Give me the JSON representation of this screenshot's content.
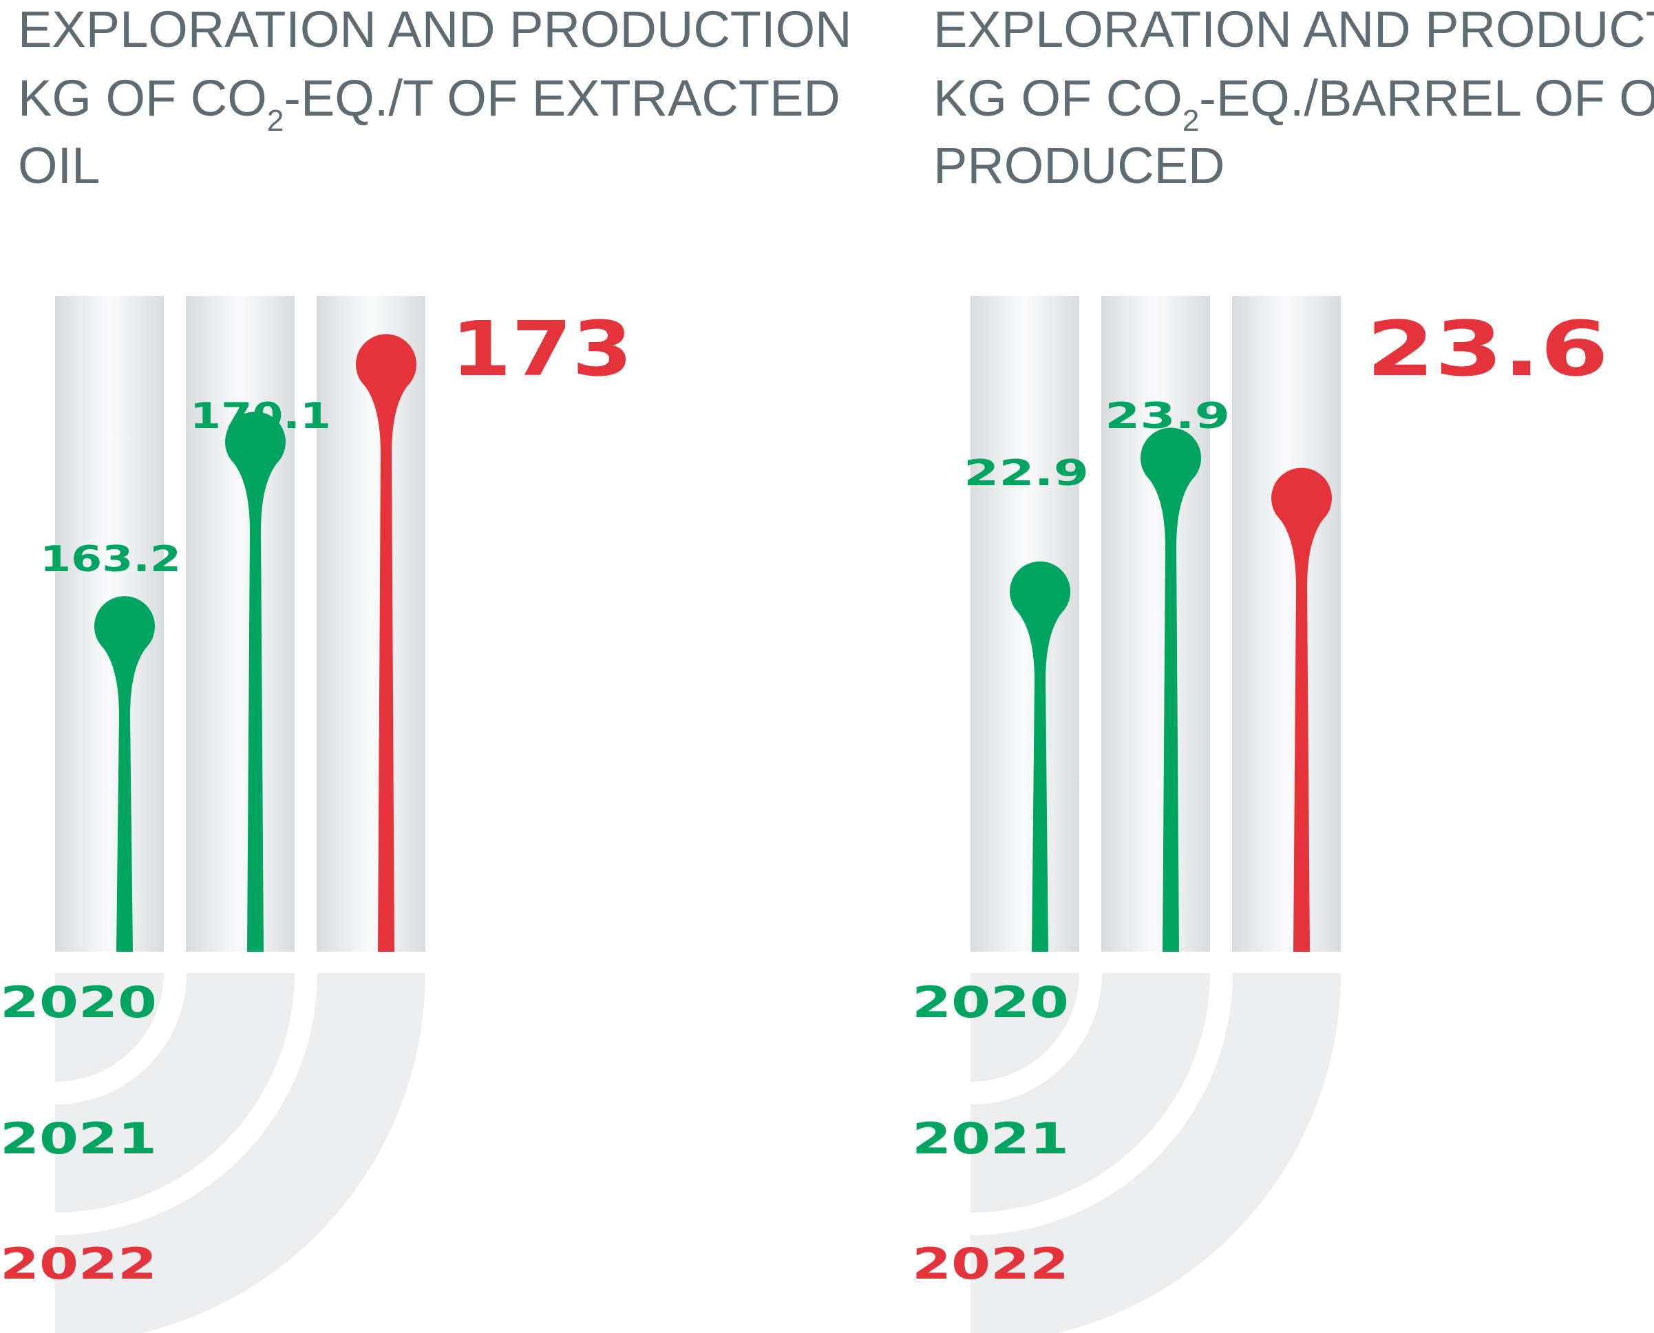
{
  "colors": {
    "green": "#00a461",
    "red": "#e5333b",
    "title_gray": "#5e6b72",
    "tube_edge": "#d6d9dc",
    "tube_center": "#f9fafb"
  },
  "chart_data": [
    {
      "type": "lollipop",
      "title_lines": [
        {
          "text": "EXPLORATION AND PRODUCTION"
        },
        {
          "text": "KG OF CO",
          "sub": "2",
          "after": "-EQ./T OF EXTRACTED"
        },
        {
          "text": "OIL"
        }
      ],
      "categories": [
        "2020",
        "2021",
        "2022"
      ],
      "values": [
        163.2,
        170.1,
        173
      ],
      "value_labels": [
        "163.2",
        "170.1",
        "173"
      ],
      "highlight": "2022",
      "ylim": [
        150,
        175
      ]
    },
    {
      "type": "lollipop",
      "title_lines": [
        {
          "text": "EXPLORATION AND PRODUCTION"
        },
        {
          "text": "KG OF CO",
          "sub": "2",
          "after": "-EQ./BARREL OF OIL"
        },
        {
          "text": "PRODUCED"
        }
      ],
      "categories": [
        "2020",
        "2021",
        "2022"
      ],
      "values": [
        22.9,
        23.9,
        23.6
      ],
      "value_labels": [
        "22.9",
        "23.9",
        "23.6"
      ],
      "highlight": "2022",
      "ylim": [
        20,
        25
      ]
    }
  ]
}
